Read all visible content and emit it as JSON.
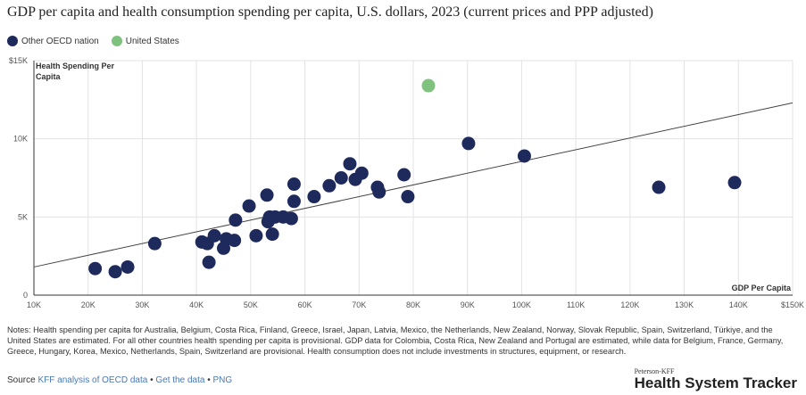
{
  "title": "GDP per capita and health consumption spending per capita, U.S. dollars, 2023 (current prices and PPP adjusted)",
  "legend": {
    "other": "Other OECD nation",
    "us": "United States"
  },
  "notes": "Notes: Health spending per capita for Australia, Belgium, Costa Rica, Finland, Greece, Israel, Japan, Latvia, Mexico, the Netherlands, New Zealand, Norway, Slovak Republic, Spain, Switzerland, Türkiye, and the United States are estimated. For all other countries health spending per capita is provisional. GDP data for Colombia, Costa Rica, New Zealand and Portugal are estimated, while data for Belgium, France, Germany, Greece, Hungary, Korea, Mexico, Netherlands, Spain, Switzerland are provisional. Health consumption does not include investments in structures, equipment, or research.",
  "footer": {
    "source_label": "Source",
    "link1": "KFF analysis of OECD data",
    "sep": "•",
    "link2": "Get the data",
    "link3": "PNG"
  },
  "brand": {
    "small": "Peterson-KFF",
    "big": "Health System Tracker"
  },
  "colors": {
    "other": "#1f2a5c",
    "us": "#7ec27e",
    "trend": "#444444",
    "grid": "#e3e3e3"
  },
  "chart_data": {
    "type": "scatter",
    "xlabel": "GDP Per Capita",
    "ylabel_line1": "Health Spending Per",
    "ylabel_line2": "Capita",
    "xlim": [
      10000,
      150000
    ],
    "ylim": [
      0,
      15000
    ],
    "x_ticks": [
      10000,
      20000,
      30000,
      40000,
      50000,
      60000,
      70000,
      80000,
      90000,
      100000,
      110000,
      120000,
      130000,
      140000,
      150000
    ],
    "x_tick_labels": [
      "10K",
      "20K",
      "30K",
      "40K",
      "50K",
      "60K",
      "70K",
      "80K",
      "90K",
      "100K",
      "110K",
      "120K",
      "130K",
      "140K",
      "$150K"
    ],
    "y_ticks": [
      0,
      5000,
      10000,
      15000
    ],
    "y_tick_labels": [
      "0",
      "5K",
      "10K",
      "$15K"
    ],
    "trendline": [
      [
        10000,
        1800
      ],
      [
        150000,
        12300
      ]
    ],
    "series": [
      {
        "name": "Other OECD nation",
        "points": [
          [
            21300,
            1700
          ],
          [
            25000,
            1500
          ],
          [
            27300,
            1800
          ],
          [
            32300,
            3300
          ],
          [
            41000,
            3400
          ],
          [
            42000,
            3300
          ],
          [
            42300,
            2100
          ],
          [
            43300,
            3800
          ],
          [
            45000,
            3000
          ],
          [
            45500,
            3600
          ],
          [
            47000,
            3500
          ],
          [
            47200,
            4800
          ],
          [
            49700,
            5700
          ],
          [
            51000,
            3800
          ],
          [
            53000,
            6400
          ],
          [
            53200,
            4700
          ],
          [
            53500,
            5000
          ],
          [
            54000,
            3900
          ],
          [
            54500,
            5000
          ],
          [
            56000,
            5000
          ],
          [
            57500,
            4900
          ],
          [
            58000,
            6000
          ],
          [
            58000,
            7100
          ],
          [
            61700,
            6300
          ],
          [
            64500,
            7000
          ],
          [
            66700,
            7500
          ],
          [
            68300,
            8400
          ],
          [
            69300,
            7400
          ],
          [
            70500,
            7800
          ],
          [
            73400,
            6900
          ],
          [
            73700,
            6600
          ],
          [
            78300,
            7700
          ],
          [
            79000,
            6300
          ],
          [
            90200,
            9700
          ],
          [
            100500,
            8900
          ],
          [
            125300,
            6900
          ],
          [
            139300,
            7200
          ]
        ]
      },
      {
        "name": "United States",
        "points": [
          [
            82800,
            13400
          ]
        ]
      }
    ]
  }
}
